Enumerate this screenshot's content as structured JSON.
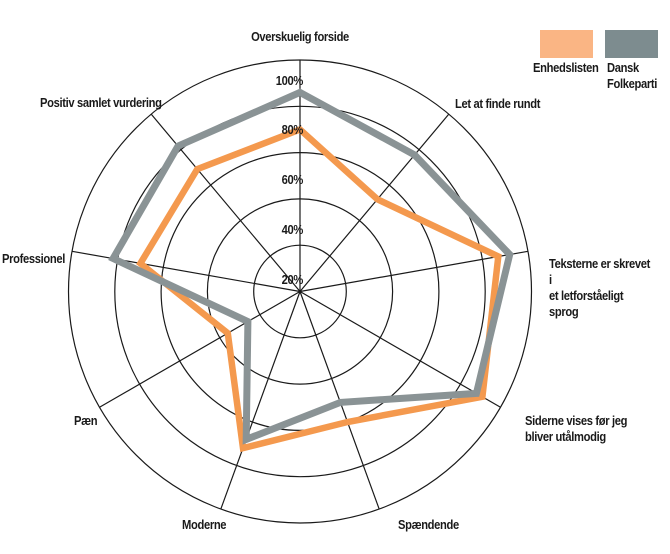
{
  "legend": {
    "items": [
      {
        "label": "Enhedslisten",
        "swatch_color": "#FAB584"
      },
      {
        "label": "Dansk\nFolkeparti",
        "swatch_color": "#7D8C8F"
      }
    ]
  },
  "chart_data": {
    "type": "radar",
    "title": "",
    "max": 100,
    "grid_on": true,
    "grid_color": "#1a1a1a",
    "rings": [
      20,
      40,
      60,
      80,
      100
    ],
    "ring_labels": [
      "20%",
      "40%",
      "60%",
      "80%",
      "100%"
    ],
    "categories": [
      "Overskuelig forside",
      "Let at finde rundt",
      "Teksterne er skrevet i\net letforståeligt sprog",
      "Siderne vises før jeg\nbliver utålmodig",
      "Spændende",
      "Moderne",
      "Pæn",
      "Professionel",
      "Positiv samlet vurdering"
    ],
    "series": [
      {
        "name": "Enhedslisten",
        "color": "#F4994E",
        "values": [
          70,
          52,
          87,
          91,
          60,
          72,
          36,
          70,
          69
        ]
      },
      {
        "name": "Dansk Folkeparti",
        "color": "#8A9395",
        "values": [
          86,
          77,
          92,
          88,
          51,
          68,
          26,
          82,
          82
        ]
      }
    ]
  }
}
